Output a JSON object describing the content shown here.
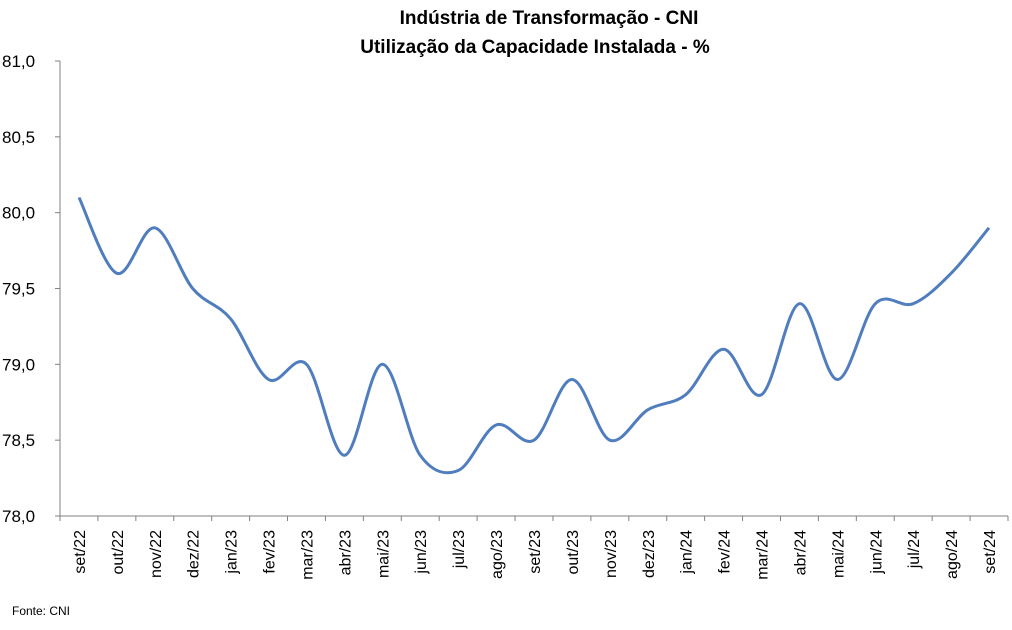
{
  "chart_data": {
    "type": "line",
    "title": "Indústria de Transformação - CNI",
    "subtitle": "Utilização da Capacidade Instalada - %",
    "xlabel": "",
    "ylabel": "",
    "ylim": [
      78.0,
      81.0
    ],
    "yticks": [
      "81,0",
      "80,5",
      "80,0",
      "79,5",
      "79,0",
      "78,5",
      "78,0"
    ],
    "grid": false,
    "legend": "none",
    "line_color": "#4F7DBE",
    "categories": [
      "set/22",
      "out/22",
      "nov/22",
      "dez/22",
      "jan/23",
      "fev/23",
      "mar/23",
      "abr/23",
      "mai/23",
      "jun/23",
      "jul/23",
      "ago/23",
      "set/23",
      "out/23",
      "nov/23",
      "dez/23",
      "jan/24",
      "fev/24",
      "mar/24",
      "abr/24",
      "mai/24",
      "jun/24",
      "jul/24",
      "ago/24",
      "set/24"
    ],
    "values": [
      80.1,
      79.6,
      79.9,
      79.5,
      79.3,
      78.9,
      79.0,
      78.4,
      79.0,
      78.4,
      78.3,
      78.6,
      78.5,
      78.9,
      78.5,
      78.7,
      78.8,
      79.1,
      78.8,
      79.4,
      78.9,
      79.4,
      79.4,
      79.6,
      79.9
    ]
  },
  "source": "Fonte: CNI"
}
